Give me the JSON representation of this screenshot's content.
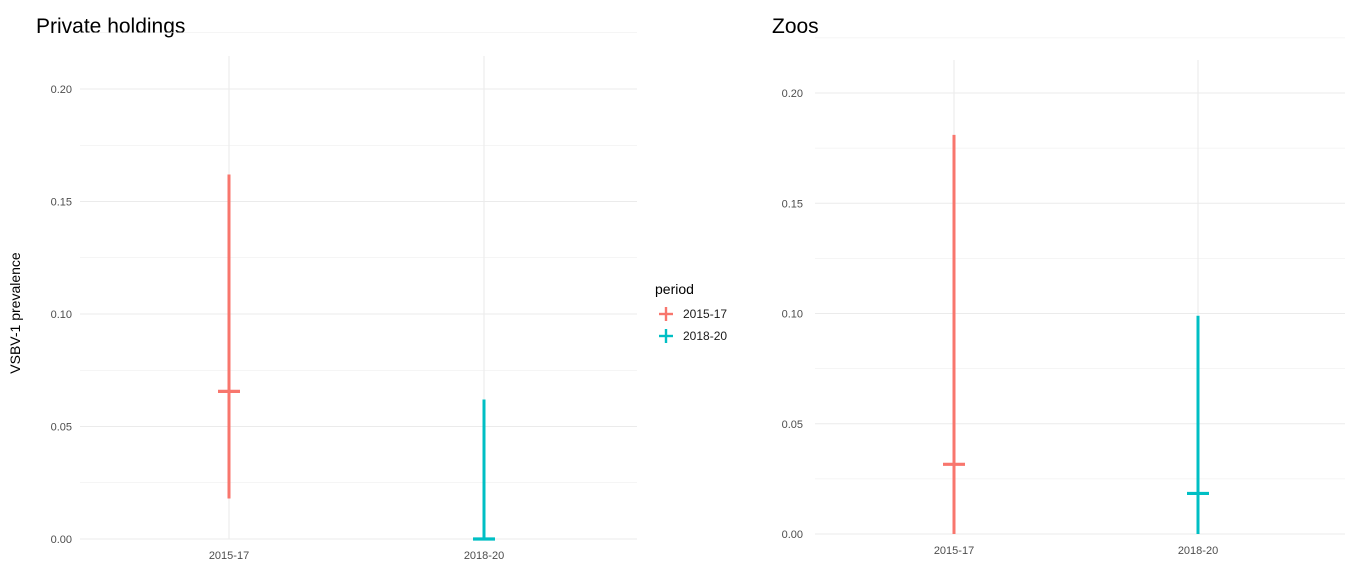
{
  "chart_data": [
    {
      "type": "errorbar",
      "title": "Private holdings",
      "xlabel": "",
      "ylabel": "VSBV-1 prevalence",
      "categories": [
        "2015-17",
        "2018-20"
      ],
      "ylim": [
        0,
        0.2
      ],
      "yticks": [
        "0.00",
        "0.05",
        "0.10",
        "0.15",
        "0.20"
      ],
      "series": [
        {
          "name": "2015-17",
          "x": "2015-17",
          "estimate": 0.0656,
          "lower": 0.018,
          "upper": 0.162
        },
        {
          "name": "2018-20",
          "x": "2018-20",
          "estimate": 0.0,
          "lower": 0.0,
          "upper": 0.062
        }
      ]
    },
    {
      "type": "errorbar",
      "title": "Zoos",
      "xlabel": "",
      "ylabel": "",
      "categories": [
        "2015-17",
        "2018-20"
      ],
      "ylim": [
        0,
        0.2
      ],
      "yticks": [
        "0.00",
        "0.05",
        "0.10",
        "0.15",
        "0.20"
      ],
      "series": [
        {
          "name": "2015-17",
          "x": "2015-17",
          "estimate": 0.0316,
          "lower": 0.0,
          "upper": 0.181
        },
        {
          "name": "2018-20",
          "x": "2018-20",
          "estimate": 0.0184,
          "lower": 0.0,
          "upper": 0.099
        }
      ]
    }
  ],
  "legend": {
    "title": "period",
    "items": [
      {
        "label": "2015-17",
        "color": "#f8766d"
      },
      {
        "label": "2018-20",
        "color": "#00bfc4"
      }
    ]
  }
}
